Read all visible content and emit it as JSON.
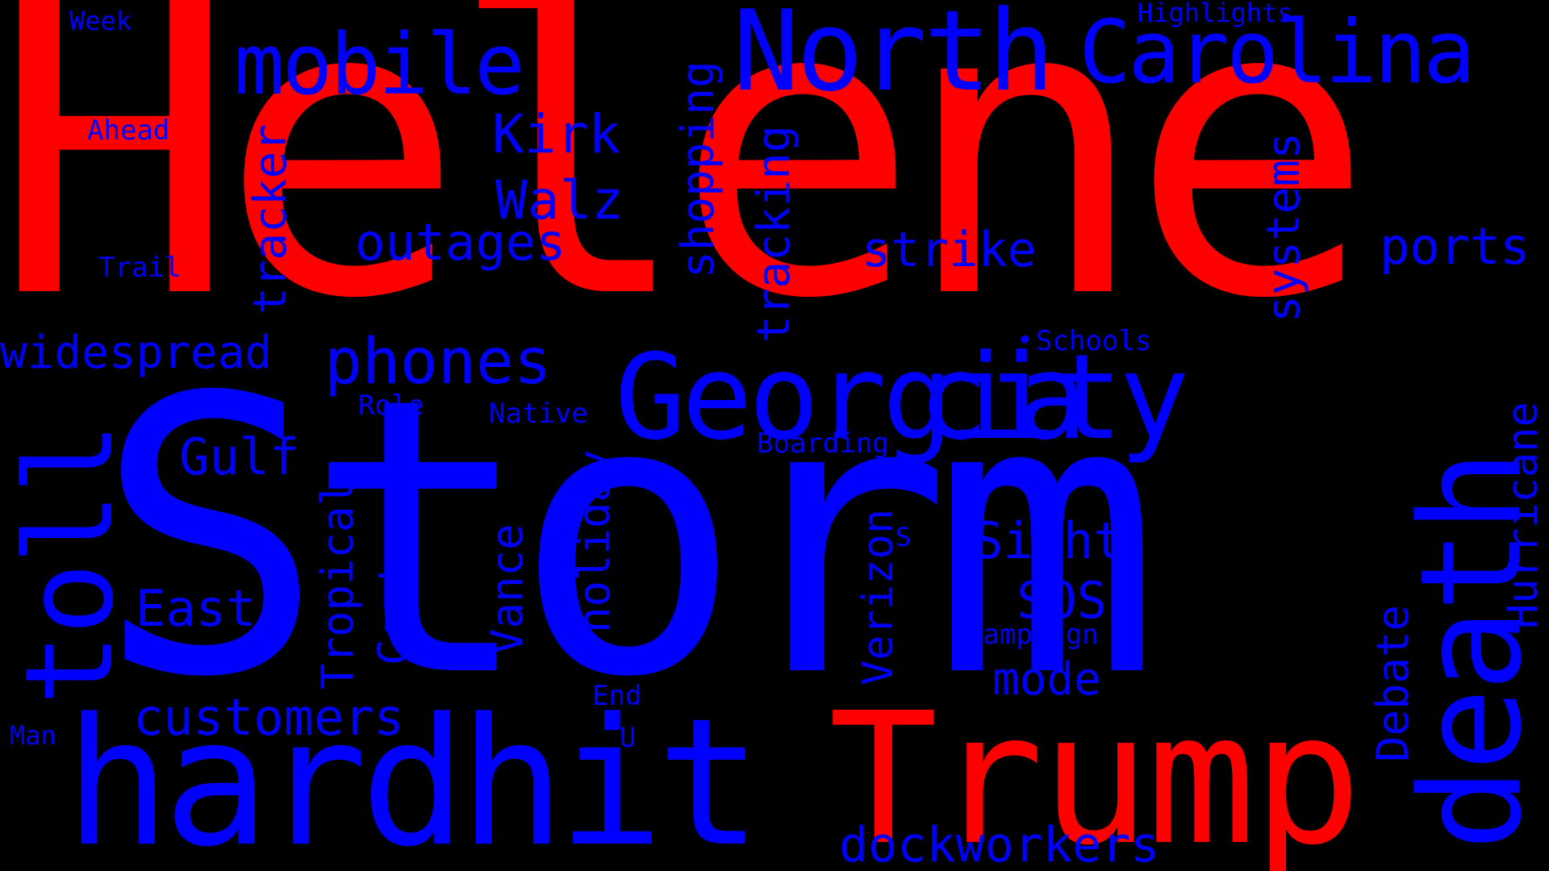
{
  "colors": {
    "background": "#000000",
    "red": "#ff0000",
    "blue": "#0000ff"
  },
  "words": {
    "helene": "Helene",
    "storm": "Storm",
    "north": "North",
    "carolina": "Carolina",
    "mobile": "mobile",
    "georgia": "Georgia",
    "city": "city",
    "hardhit": "hardhit",
    "trump": "Trump",
    "death": "death",
    "toll": "toll",
    "widespread": "widespread",
    "phones": "phones",
    "outages": "outages",
    "kirk": "Kirk",
    "walz": "Walz",
    "strike": "strike",
    "ports": "ports",
    "shopping": "shopping",
    "tracking": "tracking",
    "tracker": "tracker",
    "systems": "systems",
    "gulf": "Gulf",
    "east": "East",
    "customers": "customers",
    "dockworkers": "dockworkers",
    "sight": "Sight",
    "sos": "SOS",
    "mode": "mode",
    "hurricane": "Hurricane",
    "debate": "Debate",
    "tropical": "Tropical",
    "center": "Center",
    "vance": "Vance",
    "holiday": "holiday",
    "verizon": "Verizon",
    "week": "Week",
    "highlights": "Highlights",
    "ahead": "Ahead",
    "trail": "Trail",
    "schools": "Schools",
    "role": "Role",
    "native": "Native",
    "boarding": "Boarding",
    "s": "S",
    "campaign": "Campaign",
    "end": "End",
    "u": "U",
    "man": "Man",
    "dot": "•"
  }
}
